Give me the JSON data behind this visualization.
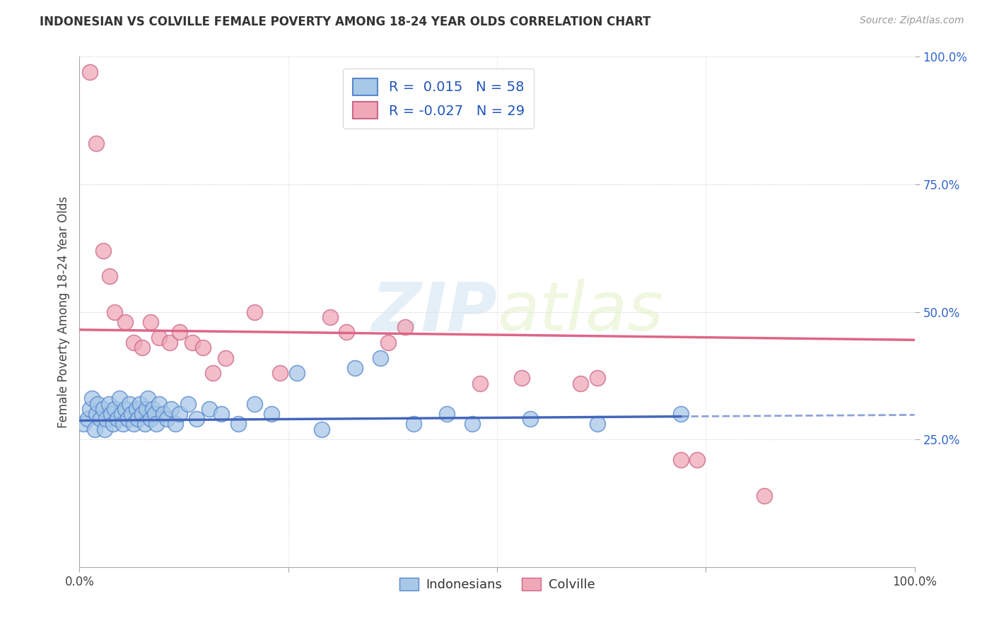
{
  "title": "INDONESIAN VS COLVILLE FEMALE POVERTY AMONG 18-24 YEAR OLDS CORRELATION CHART",
  "source": "Source: ZipAtlas.com",
  "ylabel": "Female Poverty Among 18-24 Year Olds",
  "xlim": [
    0.0,
    1.0
  ],
  "ylim": [
    0.0,
    1.0
  ],
  "background_color": "#ffffff",
  "watermark_zip": "ZIP",
  "watermark_atlas": "atlas",
  "legend_r1": "R =  0.015",
  "legend_n1": "N = 58",
  "legend_r2": "R = -0.027",
  "legend_n2": "N = 29",
  "indonesian_fill": "#a8c8e8",
  "indonesian_edge": "#5588cc",
  "colville_fill": "#f0a8b8",
  "colville_edge": "#cc6688",
  "indonesian_line_color": "#4466bb",
  "colville_line_color": "#dd6688",
  "grid_color": "#cccccc",
  "indonesian_points": [
    [
      0.005,
      0.28
    ],
    [
      0.01,
      0.29
    ],
    [
      0.012,
      0.31
    ],
    [
      0.015,
      0.33
    ],
    [
      0.018,
      0.27
    ],
    [
      0.02,
      0.3
    ],
    [
      0.022,
      0.32
    ],
    [
      0.025,
      0.29
    ],
    [
      0.028,
      0.31
    ],
    [
      0.03,
      0.27
    ],
    [
      0.032,
      0.29
    ],
    [
      0.035,
      0.32
    ],
    [
      0.038,
      0.3
    ],
    [
      0.04,
      0.28
    ],
    [
      0.042,
      0.31
    ],
    [
      0.045,
      0.29
    ],
    [
      0.048,
      0.33
    ],
    [
      0.05,
      0.3
    ],
    [
      0.052,
      0.28
    ],
    [
      0.055,
      0.31
    ],
    [
      0.058,
      0.29
    ],
    [
      0.06,
      0.32
    ],
    [
      0.062,
      0.3
    ],
    [
      0.065,
      0.28
    ],
    [
      0.068,
      0.31
    ],
    [
      0.07,
      0.29
    ],
    [
      0.072,
      0.32
    ],
    [
      0.075,
      0.3
    ],
    [
      0.078,
      0.28
    ],
    [
      0.08,
      0.31
    ],
    [
      0.082,
      0.33
    ],
    [
      0.085,
      0.29
    ],
    [
      0.088,
      0.31
    ],
    [
      0.09,
      0.3
    ],
    [
      0.092,
      0.28
    ],
    [
      0.095,
      0.32
    ],
    [
      0.1,
      0.3
    ],
    [
      0.105,
      0.29
    ],
    [
      0.11,
      0.31
    ],
    [
      0.115,
      0.28
    ],
    [
      0.12,
      0.3
    ],
    [
      0.13,
      0.32
    ],
    [
      0.14,
      0.29
    ],
    [
      0.155,
      0.31
    ],
    [
      0.17,
      0.3
    ],
    [
      0.19,
      0.28
    ],
    [
      0.21,
      0.32
    ],
    [
      0.23,
      0.3
    ],
    [
      0.26,
      0.38
    ],
    [
      0.29,
      0.27
    ],
    [
      0.33,
      0.39
    ],
    [
      0.36,
      0.41
    ],
    [
      0.4,
      0.28
    ],
    [
      0.44,
      0.3
    ],
    [
      0.47,
      0.28
    ],
    [
      0.54,
      0.29
    ],
    [
      0.62,
      0.28
    ],
    [
      0.72,
      0.3
    ]
  ],
  "colville_points": [
    [
      0.012,
      0.97
    ],
    [
      0.02,
      0.83
    ],
    [
      0.028,
      0.62
    ],
    [
      0.036,
      0.57
    ],
    [
      0.042,
      0.5
    ],
    [
      0.055,
      0.48
    ],
    [
      0.065,
      0.44
    ],
    [
      0.075,
      0.43
    ],
    [
      0.085,
      0.48
    ],
    [
      0.095,
      0.45
    ],
    [
      0.108,
      0.44
    ],
    [
      0.12,
      0.46
    ],
    [
      0.135,
      0.44
    ],
    [
      0.148,
      0.43
    ],
    [
      0.16,
      0.38
    ],
    [
      0.175,
      0.41
    ],
    [
      0.21,
      0.5
    ],
    [
      0.24,
      0.38
    ],
    [
      0.3,
      0.49
    ],
    [
      0.32,
      0.46
    ],
    [
      0.37,
      0.44
    ],
    [
      0.39,
      0.47
    ],
    [
      0.48,
      0.36
    ],
    [
      0.53,
      0.37
    ],
    [
      0.6,
      0.36
    ],
    [
      0.62,
      0.37
    ],
    [
      0.72,
      0.21
    ],
    [
      0.74,
      0.21
    ],
    [
      0.82,
      0.14
    ]
  ],
  "indonesian_trend_x": [
    0.0,
    0.72
  ],
  "indonesian_trend_y": [
    0.287,
    0.295
  ],
  "colville_trend_x": [
    0.0,
    1.0
  ],
  "colville_trend_y": [
    0.465,
    0.445
  ]
}
